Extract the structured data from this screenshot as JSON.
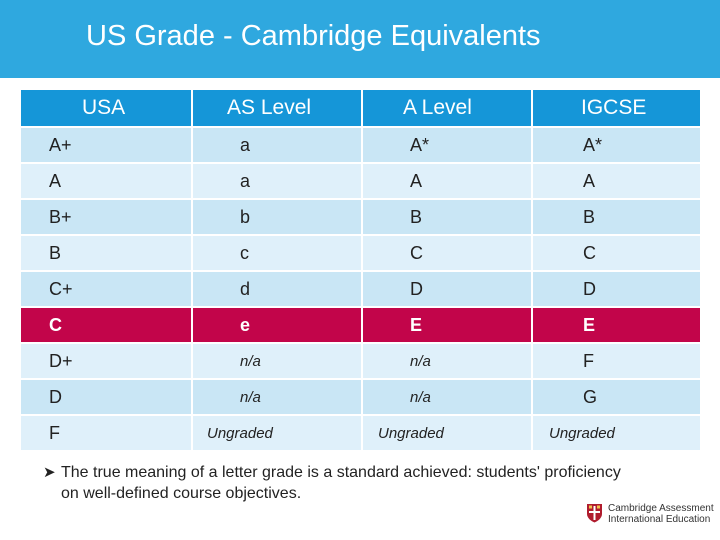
{
  "title": "US Grade - Cambridge Equivalents",
  "table": {
    "headers": [
      "USA",
      "AS Level",
      "A Level",
      "IGCSE"
    ],
    "rows": [
      [
        "A+",
        "a",
        "A*",
        "A*"
      ],
      [
        "A",
        "a",
        "A",
        "A"
      ],
      [
        "B+",
        "b",
        "B",
        "B"
      ],
      [
        "B",
        "c",
        "C",
        "C"
      ],
      [
        "C+",
        "d",
        "D",
        "D"
      ],
      [
        "C",
        "e",
        "E",
        "E"
      ],
      [
        "D+",
        "n/a",
        "n/a",
        "F"
      ],
      [
        "D",
        "n/a",
        "n/a",
        "G"
      ],
      [
        "F",
        "Ungraded",
        "Ungraded",
        "Ungraded"
      ]
    ],
    "highlighted_row_index": 5
  },
  "note": {
    "bullet_icon": "arrow-bullet-icon",
    "text": "The true meaning of a letter grade is a standard achieved: students' proficiency on well-defined course objectives."
  },
  "logo": {
    "icon": "cambridge-shield-icon",
    "line1": "Cambridge Assessment",
    "line2": "International Education"
  },
  "colors": {
    "title_bar": "#2fa8df",
    "header_row": "#1596d8",
    "row_band_dark": "#c9e6f5",
    "row_band_light": "#dff0fa",
    "highlight_row": "#c2054a"
  }
}
